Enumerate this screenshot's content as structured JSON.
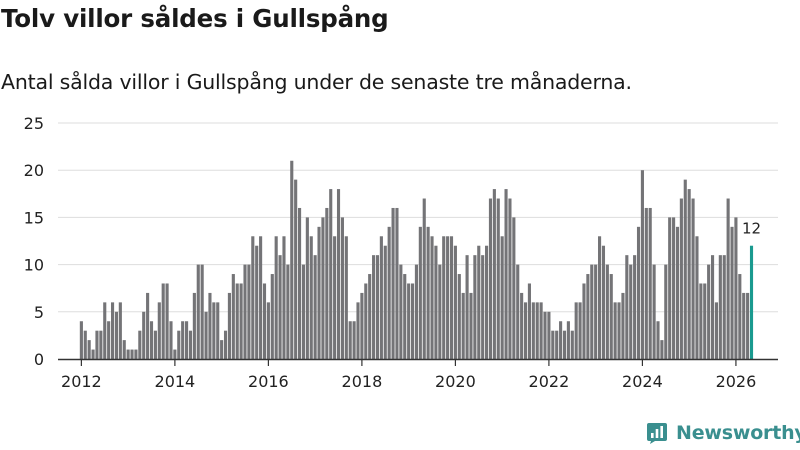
{
  "title": "Tolv villor såldes i Gullspång",
  "subtitle": "Antal sålda villor i Gullspång under de senaste tre månaderna.",
  "logo": {
    "text": "Newsworthy",
    "icon": "newsworthy-logo-icon"
  },
  "colors": {
    "bar": "#747477",
    "highlight": "#1a9a8f",
    "grid": "#dddddd",
    "axis": "#333333",
    "logo": "#3a8f8f"
  },
  "chart_data": {
    "type": "bar",
    "title": "Tolv villor såldes i Gullspång",
    "xlabel": "",
    "ylabel": "",
    "ylim": [
      0,
      25
    ],
    "yticks": [
      0,
      5,
      10,
      15,
      20,
      25
    ],
    "xticks": [
      "2012",
      "2014",
      "2016",
      "2018",
      "2020",
      "2022",
      "2024",
      "2026"
    ],
    "x_start": "2012-01",
    "x_end": "2026-03",
    "x_range": [
      2011.5,
      2026.9
    ],
    "grid": true,
    "legend": "none",
    "highlight_label": "12",
    "values": [
      4,
      3,
      2,
      1,
      3,
      3,
      6,
      4,
      6,
      5,
      6,
      2,
      1,
      1,
      1,
      3,
      5,
      7,
      4,
      3,
      6,
      8,
      8,
      4,
      1,
      3,
      4,
      4,
      3,
      7,
      10,
      10,
      5,
      7,
      6,
      6,
      2,
      3,
      7,
      9,
      8,
      8,
      10,
      10,
      13,
      12,
      13,
      8,
      6,
      9,
      13,
      11,
      13,
      10,
      21,
      19,
      16,
      10,
      15,
      13,
      11,
      14,
      15,
      16,
      18,
      13,
      18,
      15,
      13,
      4,
      4,
      6,
      7,
      8,
      9,
      11,
      11,
      13,
      12,
      14,
      16,
      16,
      10,
      9,
      8,
      8,
      10,
      14,
      17,
      14,
      13,
      12,
      10,
      13,
      13,
      13,
      12,
      9,
      7,
      11,
      7,
      11,
      12,
      11,
      12,
      17,
      18,
      17,
      13,
      18,
      17,
      15,
      10,
      7,
      6,
      8,
      6,
      6,
      6,
      5,
      5,
      3,
      3,
      4,
      3,
      4,
      3,
      6,
      6,
      8,
      9,
      10,
      10,
      13,
      12,
      10,
      9,
      6,
      6,
      7,
      11,
      10,
      11,
      14,
      20,
      16,
      16,
      10,
      4,
      2,
      10,
      15,
      15,
      14,
      17,
      19,
      18,
      17,
      13,
      8,
      8,
      10,
      11,
      6,
      11,
      11,
      17,
      14,
      15,
      9,
      7,
      7,
      12
    ]
  }
}
